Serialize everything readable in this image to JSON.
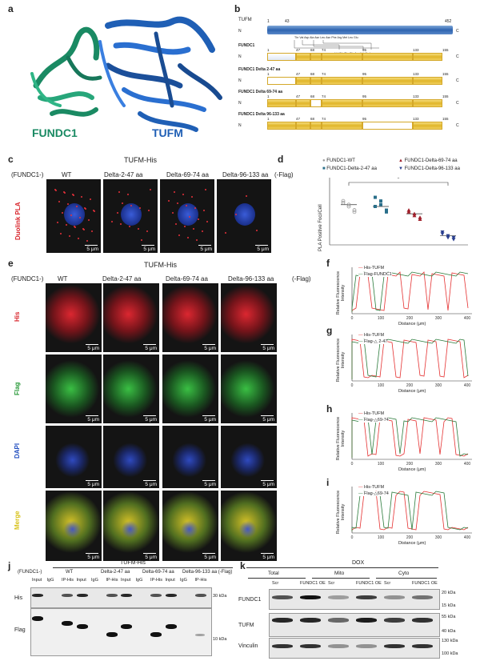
{
  "panels": {
    "a": "a",
    "b": "b",
    "c": "c",
    "d": "d",
    "e": "e",
    "f": "f",
    "g": "g",
    "h": "h",
    "i": "i",
    "j": "j",
    "k": "k"
  },
  "panel_a": {
    "label1": "FUNDC1",
    "label2": "TUFM",
    "color1": "#1a8a63",
    "color2": "#1f5fb5"
  },
  "panel_b": {
    "tufm": {
      "name": "TUFM",
      "start": "1",
      "mid": "43",
      "end": "452",
      "n": "N",
      "c": "C"
    },
    "fundc1_rows": [
      {
        "name": "FUNDC1",
        "ticks": [
          "1",
          "47",
          "68",
          "74",
          "95",
          "133",
          "155"
        ]
      },
      {
        "name": "FUNDC1 Delta 2-47 aa",
        "ticks": [
          "1",
          "47",
          "68",
          "74",
          "95",
          "133",
          "155"
        ]
      },
      {
        "name": "FUNDC1 Delta 69-74 aa",
        "ticks": [
          "1",
          "47",
          "68",
          "74",
          "95",
          "133",
          "155"
        ]
      },
      {
        "name": "FUNDC1 Delta 96-133 aa",
        "ticks": [
          "1",
          "47",
          "68",
          "74",
          "95",
          "133",
          "155"
        ]
      }
    ],
    "residues_top": "Thr Val Asp   Ala Asn Leu Asn Phe Arg Met Leu Glu",
    "residues_bottom": "Val Glu   Thr Glu Asp Val Ala   Lys"
  },
  "panel_c": {
    "title": "TUFM-His",
    "row_label": "Duolink PLA",
    "prefix": "(FUNDC1-)",
    "suffix": "(-Flag)",
    "columns": [
      "WT",
      "Delta-2-47 aa",
      "Delta-69-74 aa",
      "Delta-96-133 aa"
    ],
    "scale": "5 μm"
  },
  "panel_d": {
    "ylabel": "PLA Positive Foci/Cell",
    "significance": "*",
    "legend": [
      "FUNDC1-WT",
      "FUNDC1-Delta-2-47 aa",
      "FUNDC1-Delta-69-74 aa",
      "FUNDC1-Delta-96-133 aa"
    ],
    "colors": [
      "#999999",
      "#2a6f8a",
      "#a01f2a",
      "#2a3f8f"
    ]
  },
  "chart_data": {
    "type": "scatter",
    "ylabel": "PLA Positive Foci/Cell",
    "series": [
      {
        "name": "FUNDC1-WT",
        "mean": 22,
        "values": [
          24,
          21,
          19,
          23,
          22,
          18
        ]
      },
      {
        "name": "FUNDC1-Delta-2-47 aa",
        "mean": 21,
        "values": [
          26,
          22,
          19,
          21,
          24,
          18
        ]
      },
      {
        "name": "FUNDC1-Delta-69-74 aa",
        "mean": 17,
        "values": [
          19,
          16,
          14,
          18,
          17,
          15
        ]
      },
      {
        "name": "FUNDC1-Delta-96-133 aa",
        "mean": 5,
        "values": [
          6,
          4,
          3,
          7,
          5,
          4
        ]
      }
    ],
    "ylim": [
      0,
      35
    ]
  },
  "panel_e": {
    "title": "TUFM-His",
    "prefix": "(FUNDC1-)",
    "suffix": "(-Flag)",
    "columns": [
      "WT",
      "Delta-2-47 aa",
      "Delta-69-74 aa",
      "Delta-96-133 aa"
    ],
    "rows": [
      {
        "label": "His",
        "color": "#d9272e"
      },
      {
        "label": "Flag",
        "color": "#2a9a3a"
      },
      {
        "label": "DAPI",
        "color": "#2450c0"
      },
      {
        "label": "Merge",
        "color": "#d8c21a"
      }
    ],
    "scale": "5 μm"
  },
  "profile_plots": [
    {
      "id": "f",
      "ylabel": "Relative Fluorescence Intensity",
      "xlabel": "Distance (μm)",
      "legend": [
        "His-TUFM",
        "Flag-FUNDC1"
      ],
      "xticks": [
        "0",
        "100",
        "200",
        "300",
        "400"
      ]
    },
    {
      "id": "g",
      "ylabel": "Relative Fluorescence Intensity",
      "xlabel": "Distance (μm)",
      "legend": [
        "His-TUFM",
        "Flag-△ 2-47"
      ],
      "xticks": [
        "0",
        "100",
        "200",
        "300",
        "400"
      ]
    },
    {
      "id": "h",
      "ylabel": "Relative Fluorescence Intensity",
      "xlabel": "Distance (μm)",
      "legend": [
        "His-TUFM",
        "Flag-△69-74"
      ],
      "xticks": [
        "0",
        "100",
        "200",
        "300",
        "400"
      ]
    },
    {
      "id": "i",
      "ylabel": "Relative Fluorescence Intensity",
      "xlabel": "Distance (μm)",
      "legend": [
        "His-TUFM",
        "Flag-△69-74"
      ],
      "xticks": [
        "0",
        "100",
        "200",
        "300",
        "400"
      ]
    }
  ],
  "panel_j": {
    "title": "TUFM-His",
    "prefix": "(FUNDC1-)",
    "groups": [
      "WT",
      "Delta-2-47 aa",
      "Delta-69-74 aa",
      "Delta-96-133 aa (-Flag)"
    ],
    "lanes": [
      "Input",
      "IgG",
      "IP-His",
      "Input",
      "IgG",
      "IP-His",
      "Input",
      "IgG",
      "IP-His",
      "Input",
      "IgG",
      "IP-His"
    ],
    "rows": [
      "His",
      "Flag"
    ],
    "markers": [
      "30 kDa",
      "10 kDa"
    ]
  },
  "panel_k": {
    "title": "DOX",
    "fractions": [
      "Total",
      "Mito",
      "Cyto"
    ],
    "lanes": [
      "Scr",
      "FUNDC1 OE",
      "Scr",
      "FUNDC1 OE",
      "Scr",
      "FUNDC1 OE"
    ],
    "rows": [
      "FUNDC1",
      "TUFM",
      "Vinculin"
    ],
    "markers": [
      "20 kDa",
      "15 kDa",
      "55 kDa",
      "40 kDa",
      "130 kDa",
      "100 kDa"
    ]
  }
}
